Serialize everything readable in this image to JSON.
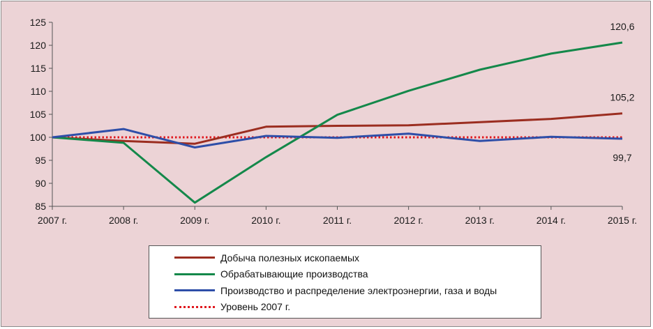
{
  "chart_data": {
    "type": "line",
    "title": "",
    "xlabel": "",
    "ylabel": "",
    "categories": [
      "2007 г.",
      "2008 г.",
      "2009 г.",
      "2010 г.",
      "2011 г.",
      "2012 г.",
      "2013 г.",
      "2014 г.",
      "2015 г."
    ],
    "ylim": [
      85,
      125
    ],
    "yticks": [
      85,
      90,
      95,
      100,
      105,
      110,
      115,
      120,
      125
    ],
    "grid": false,
    "legend_position": "bottom",
    "series": [
      {
        "name": "Добыча полезных ископаемых",
        "color": "#9b2d20",
        "style": "solid",
        "values": [
          100,
          99.2,
          98.6,
          102.3,
          102.5,
          102.6,
          103.3,
          104.0,
          105.2
        ]
      },
      {
        "name": "Обрабатывающие производства",
        "color": "#14884a",
        "style": "solid",
        "values": [
          100,
          98.8,
          85.8,
          95.7,
          104.9,
          110.1,
          114.7,
          118.2,
          120.6
        ]
      },
      {
        "name": "Производство и распределение электроэнергии, газа и воды",
        "color": "#2e4ea8",
        "style": "solid",
        "values": [
          100,
          101.8,
          97.8,
          100.3,
          99.9,
          100.8,
          99.2,
          100.1,
          99.7
        ]
      },
      {
        "name": "Уровень 2007 г.",
        "color": "#e0181e",
        "style": "dotted",
        "values": [
          100,
          100,
          100,
          100,
          100,
          100,
          100,
          100,
          100
        ]
      }
    ],
    "annotations": [
      {
        "text": "120,6",
        "series": 1,
        "index": 8
      },
      {
        "text": "105,2",
        "series": 0,
        "index": 8
      },
      {
        "text": "99,7",
        "series": 2,
        "index": 8
      }
    ]
  }
}
